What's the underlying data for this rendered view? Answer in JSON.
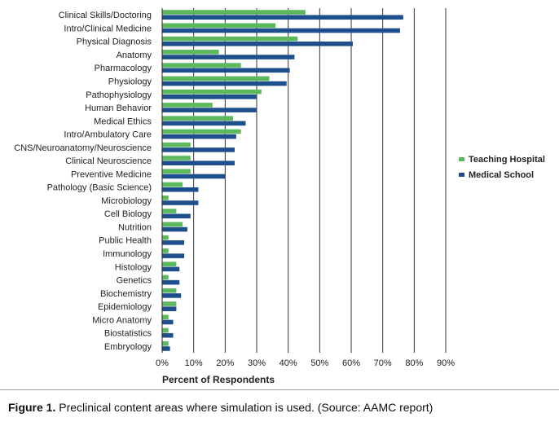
{
  "chart_data": {
    "type": "bar",
    "orientation": "horizontal",
    "categories": [
      "Clinical Skills/Doctoring",
      "Intro/Clinical Medicine",
      "Physical Diagnosis",
      "Anatomy",
      "Pharmacology",
      "Physiology",
      "Pathophysiology",
      "Human Behavior",
      "Medical Ethics",
      "Intro/Ambulatory Care",
      "CNS/Neuroanatomy/Neuroscience",
      "Clinical Neuroscience",
      "Preventive Medicine",
      "Pathology (Basic Science)",
      "Microbiology",
      "Cell Biology",
      "Nutrition",
      "Public Health",
      "Immunology",
      "Histology",
      "Genetics",
      "Biochemistry",
      "Epidemiology",
      "Micro Anatomy",
      "Biostatistics",
      "Embryology"
    ],
    "series": [
      {
        "name": "Teaching Hospital",
        "color": "#5cb85c",
        "values": [
          45.5,
          36,
          43,
          18,
          25,
          34,
          31.5,
          16,
          22.5,
          25,
          9,
          9,
          9,
          6.5,
          2,
          4.5,
          6.5,
          2,
          2,
          4.5,
          2,
          4.5,
          4.5,
          2,
          2,
          2
        ]
      },
      {
        "name": "Medical School",
        "color": "#1f4e8c",
        "values": [
          76.5,
          75.5,
          60.5,
          42,
          40.5,
          39.5,
          30,
          30,
          26.5,
          23.5,
          23,
          23,
          20,
          11.5,
          11.5,
          9,
          8,
          7,
          7,
          5.5,
          5.5,
          6,
          4.5,
          3.5,
          3.5,
          2.5
        ]
      }
    ],
    "xlabel": "Percent of Respondents",
    "xlim": [
      0,
      90
    ],
    "xticks": [
      "0%",
      "10%",
      "20%",
      "30%",
      "40%",
      "50%",
      "60%",
      "70%",
      "80%",
      "90%"
    ],
    "grid": "vertical gridlines",
    "legend_position": "right"
  },
  "caption": {
    "label": "Figure 1.",
    "text": " Preclinical content areas where simulation is used. (Source: AAMC report)"
  }
}
